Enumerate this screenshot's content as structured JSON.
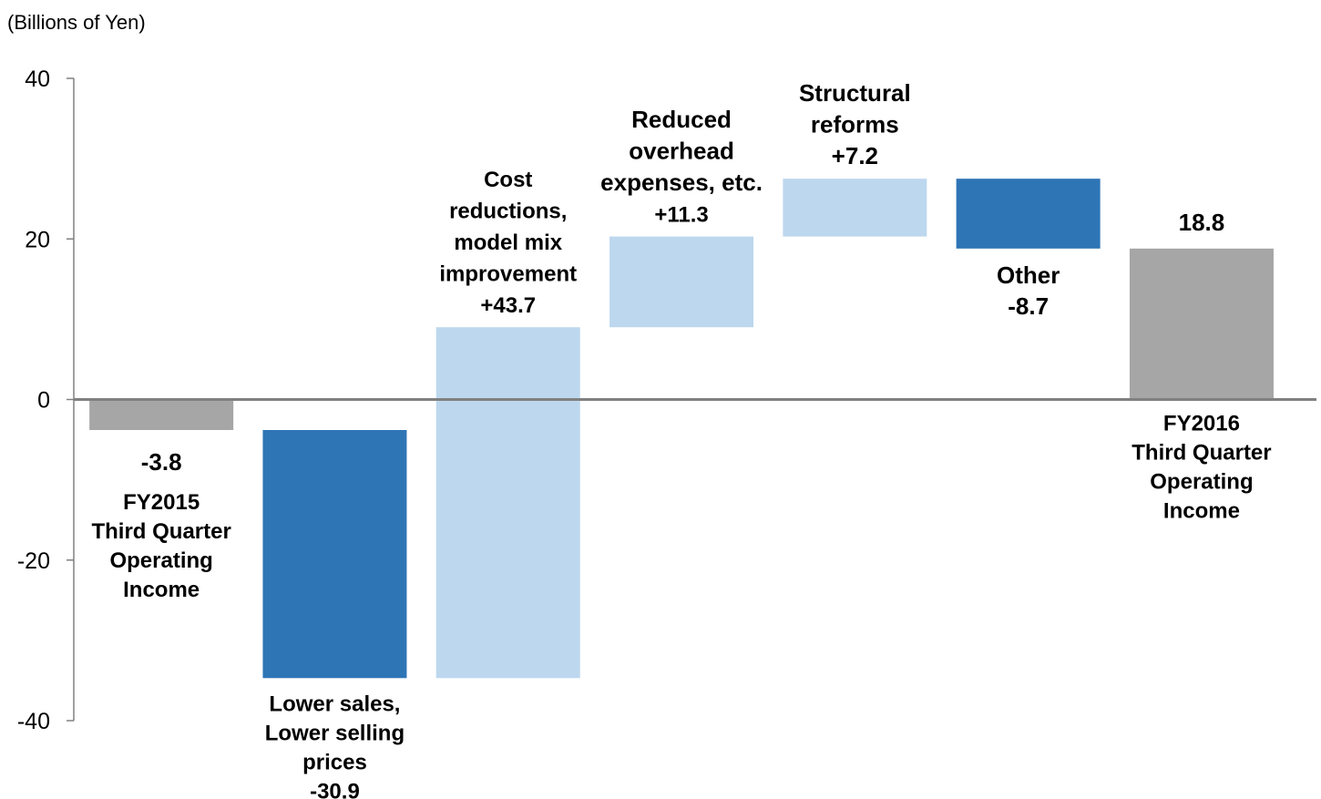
{
  "chart_data": {
    "type": "bar",
    "subtype": "waterfall",
    "unit_label": "(Billions of Yen)",
    "ylim": [
      -40,
      40
    ],
    "yticks": [
      "40",
      "20",
      "0",
      "-20",
      "-40"
    ],
    "ytick_values": [
      40,
      20,
      0,
      -20,
      -40
    ],
    "grid": false,
    "legend": "none",
    "steps": [
      {
        "kind": "total",
        "value": -3.8,
        "value_label": "-3.8",
        "category_lines": [
          "FY2015",
          "Third Quarter",
          "Operating",
          "Income"
        ]
      },
      {
        "kind": "delta",
        "value": -30.9,
        "value_label": "-30.9",
        "category_lines": [
          "Lower sales,",
          "Lower selling",
          "prices"
        ]
      },
      {
        "kind": "delta",
        "value": 43.7,
        "value_label": "+43.7",
        "category_lines": [
          "Cost",
          "reductions,",
          "model mix",
          "improvement"
        ]
      },
      {
        "kind": "delta",
        "value": 11.3,
        "value_label": "+11.3",
        "category_lines": [
          "Reduced",
          "overhead",
          "expenses, etc."
        ]
      },
      {
        "kind": "delta",
        "value": 7.2,
        "value_label": "+7.2",
        "category_lines": [
          "Structural",
          "reforms"
        ]
      },
      {
        "kind": "delta",
        "value": -8.7,
        "value_label": "-8.7",
        "category_lines": [
          "Other"
        ]
      },
      {
        "kind": "total",
        "value": 18.8,
        "value_label": "18.8",
        "category_lines": [
          "FY2016",
          "Third Quarter",
          "Operating",
          "Income"
        ]
      }
    ],
    "colors": {
      "total": "#A6A6A6",
      "increase": "#BDD7EE",
      "decrease": "#2E75B6",
      "axis": "#808080"
    }
  }
}
